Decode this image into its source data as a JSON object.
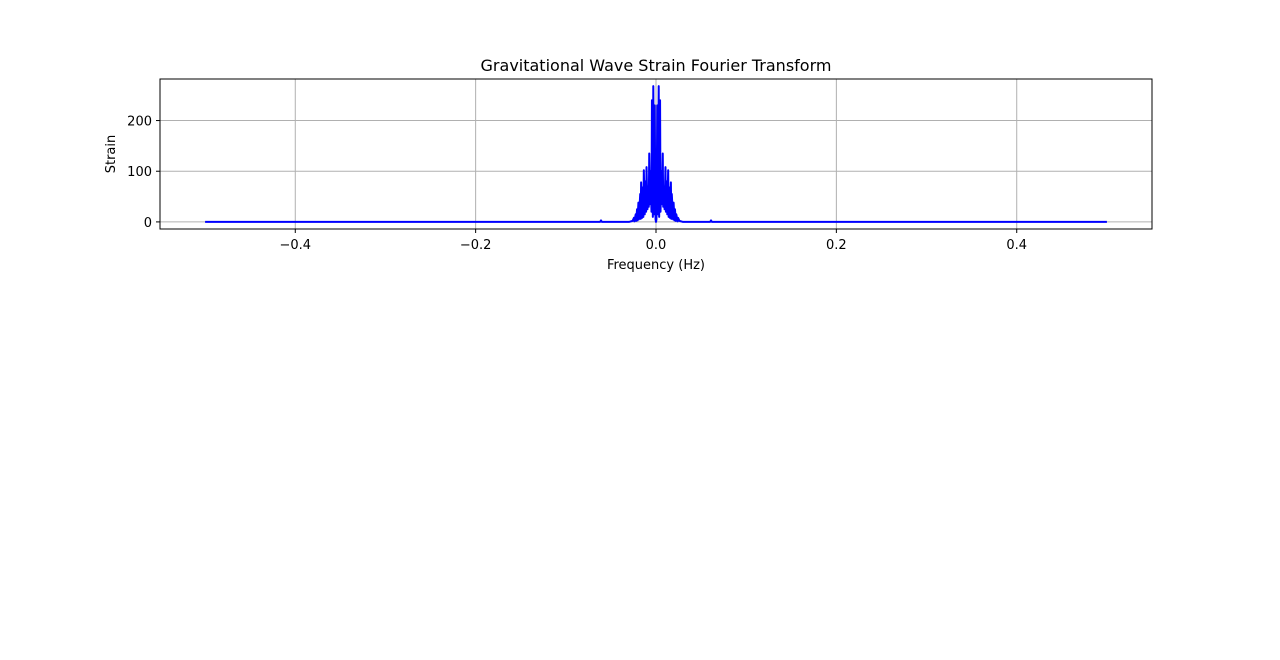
{
  "chart_data": {
    "type": "line",
    "title": "Gravitational Wave Strain Fourier Transform",
    "xlabel": "Frequency (Hz)",
    "ylabel": "Strain",
    "xlim": [
      -0.55,
      0.55
    ],
    "ylim": [
      -14,
      282
    ],
    "xticks": [
      -0.4,
      -0.2,
      0.0,
      0.2,
      0.4
    ],
    "xtick_labels": [
      "−0.4",
      "−0.2",
      "0.0",
      "0.2",
      "0.4"
    ],
    "yticks": [
      0,
      100,
      200
    ],
    "ytick_labels": [
      "0",
      "100",
      "200"
    ],
    "grid": true,
    "series": [
      {
        "color": "#0000ff",
        "x": [
          -0.5,
          -0.062,
          -0.061,
          -0.06,
          -0.03,
          -0.026,
          -0.0245,
          -0.024,
          -0.0225,
          -0.022,
          -0.021,
          -0.0205,
          -0.0195,
          -0.019,
          -0.0175,
          -0.017,
          -0.0165,
          -0.0155,
          -0.015,
          -0.014,
          -0.0135,
          -0.0125,
          -0.012,
          -0.011,
          -0.0105,
          -0.0095,
          -0.009,
          -0.008,
          -0.0075,
          -0.0065,
          -0.006,
          -0.005,
          -0.0045,
          -0.0035,
          -0.003,
          -0.002,
          -0.0015,
          -0.0005,
          0.0,
          0.0005,
          0.0015,
          0.002,
          0.003,
          0.0035,
          0.0045,
          0.005,
          0.006,
          0.0065,
          0.0075,
          0.008,
          0.009,
          0.0095,
          0.0105,
          0.011,
          0.012,
          0.0125,
          0.0135,
          0.014,
          0.015,
          0.0155,
          0.0165,
          0.017,
          0.0175,
          0.019,
          0.0195,
          0.0205,
          0.021,
          0.022,
          0.0225,
          0.024,
          0.0245,
          0.026,
          0.03,
          0.06,
          0.061,
          0.062,
          0.5
        ],
        "y": [
          0,
          0,
          3,
          0,
          0,
          2,
          8,
          1,
          15,
          2,
          25,
          3,
          38,
          5,
          55,
          6,
          78,
          8,
          68,
          10,
          102,
          15,
          80,
          20,
          108,
          25,
          70,
          30,
          135,
          35,
          100,
          20,
          240,
          10,
          268,
          15,
          230,
          5,
          0,
          5,
          230,
          15,
          268,
          10,
          240,
          20,
          100,
          35,
          135,
          30,
          70,
          25,
          108,
          20,
          80,
          15,
          102,
          10,
          68,
          8,
          78,
          6,
          55,
          5,
          38,
          3,
          25,
          2,
          15,
          1,
          8,
          2,
          0,
          0,
          3,
          0,
          0
        ]
      }
    ]
  }
}
